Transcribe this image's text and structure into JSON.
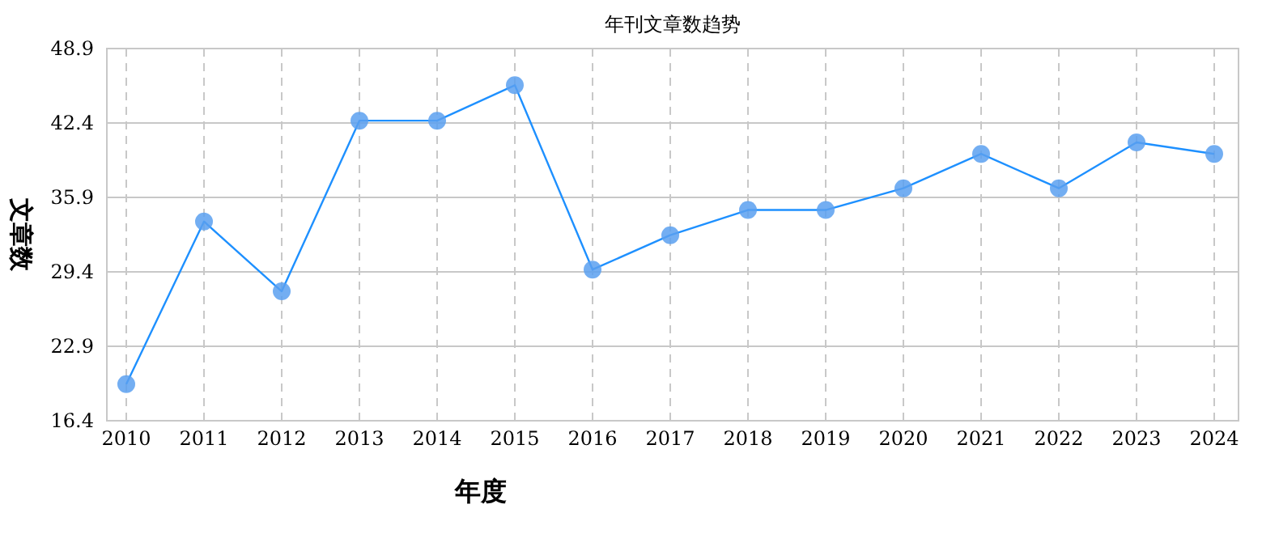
{
  "chart_data": {
    "type": "line",
    "title": "年刊文章数趋势",
    "xlabel": "年度",
    "ylabel": "文章数",
    "categories": [
      "2010",
      "2011",
      "2012",
      "2013",
      "2014",
      "2015",
      "2016",
      "2017",
      "2018",
      "2019",
      "2020",
      "2021",
      "2022",
      "2023",
      "2024"
    ],
    "series": [
      {
        "color": "#1e90ff",
        "values": [
          19.6,
          33.8,
          27.7,
          42.6,
          42.6,
          45.7,
          29.6,
          32.6,
          34.8,
          34.8,
          36.7,
          39.7,
          36.7,
          40.7,
          39.7
        ]
      }
    ],
    "ylim": [
      16.4,
      48.9
    ],
    "yticks": [
      16.4,
      22.9,
      29.4,
      35.9,
      42.4,
      48.9
    ],
    "grid": true,
    "marker": "circle",
    "line_style": "solid"
  }
}
